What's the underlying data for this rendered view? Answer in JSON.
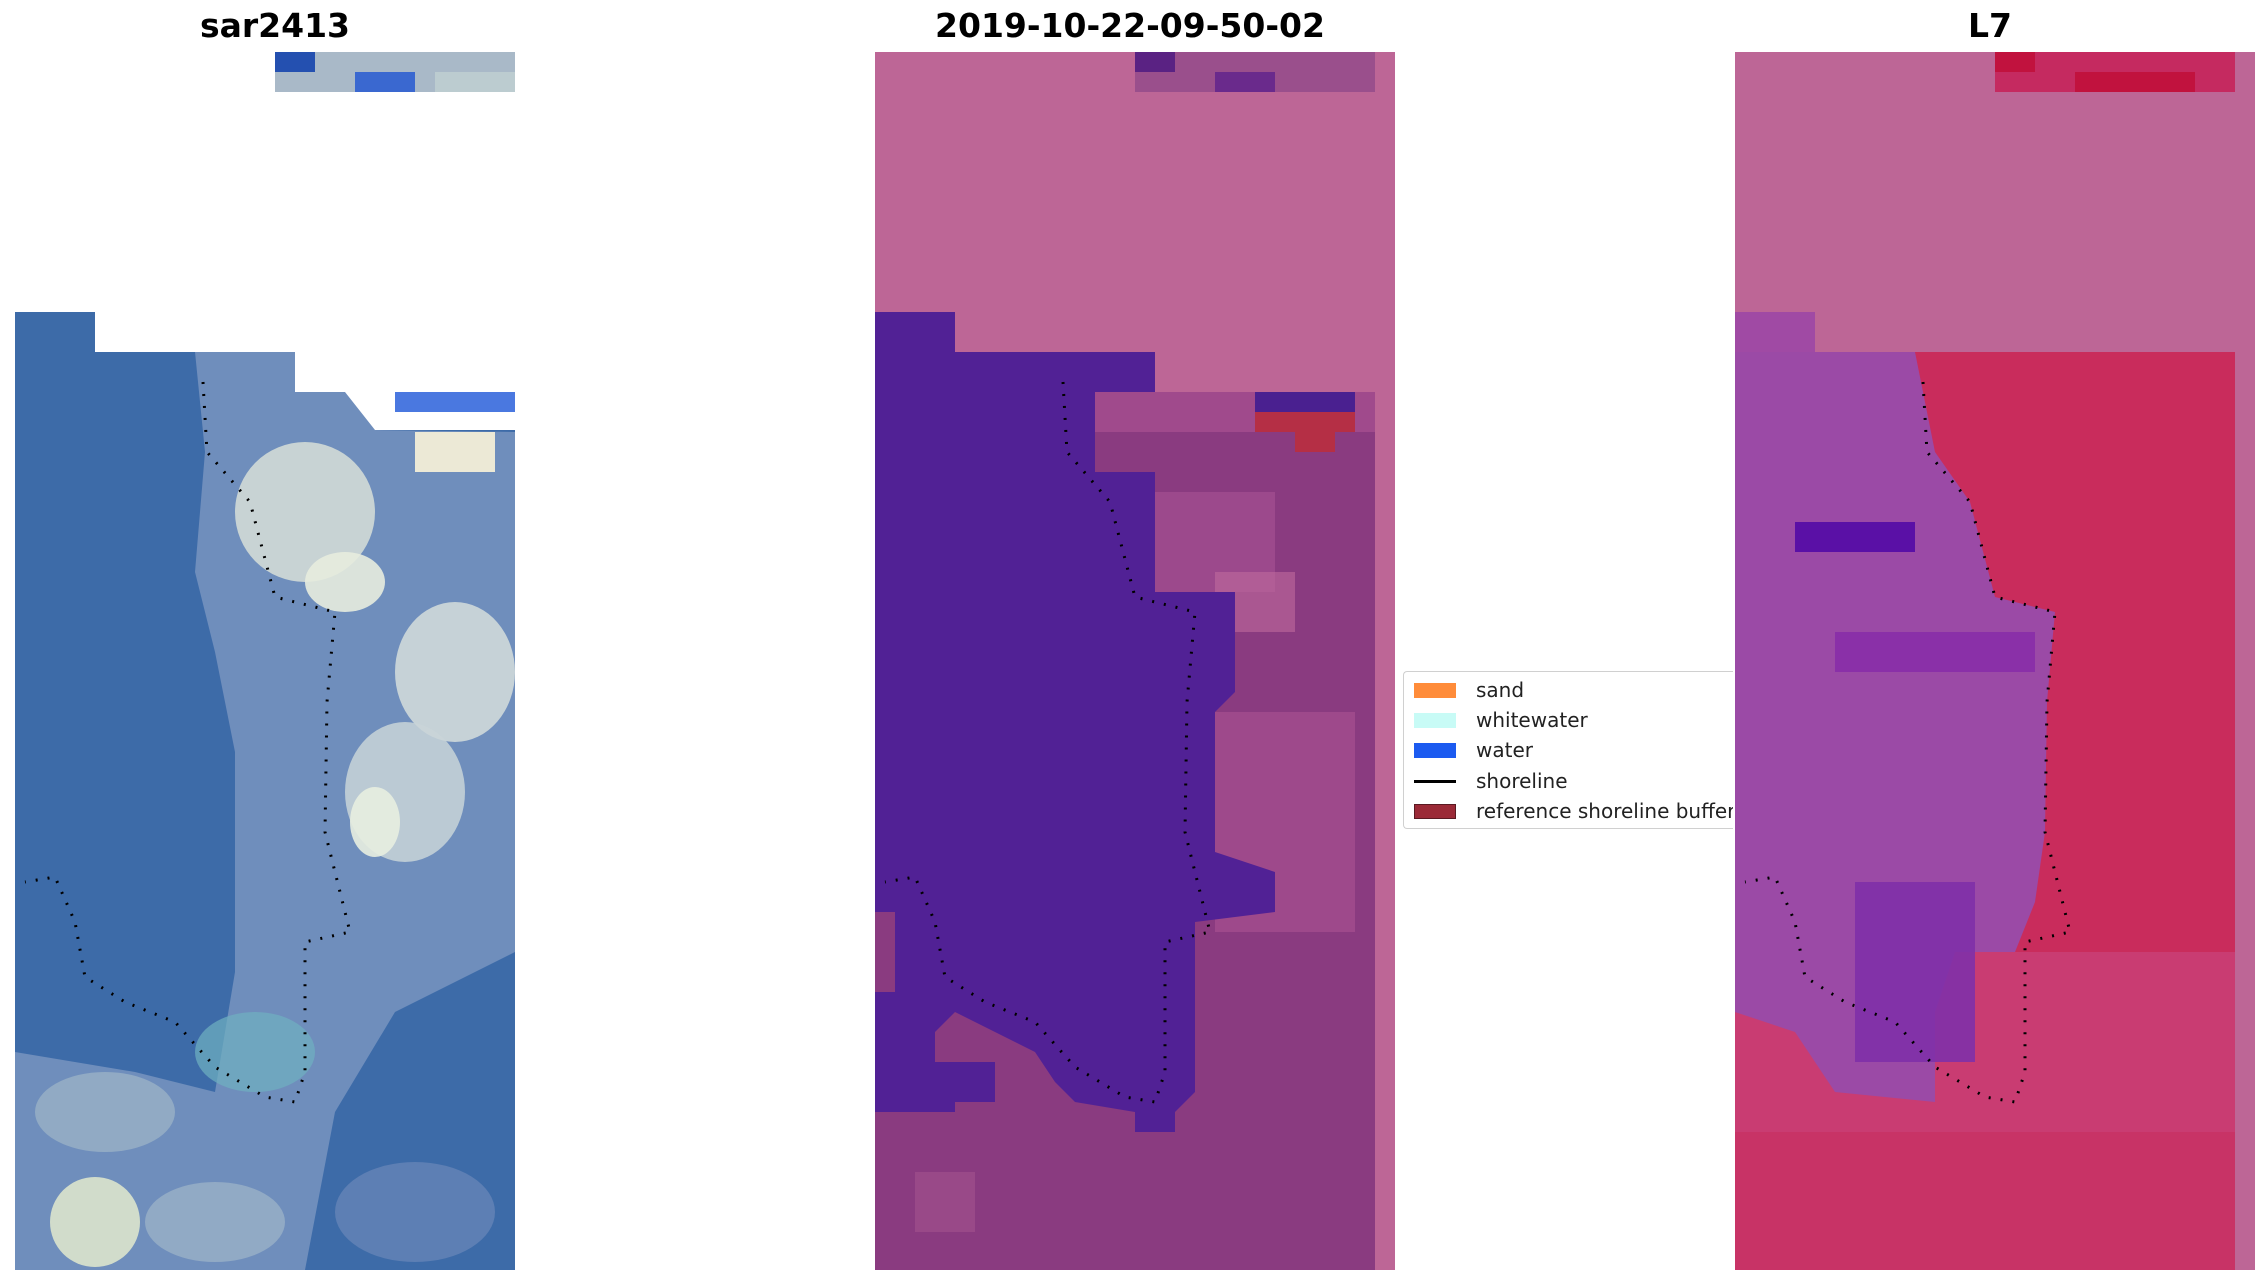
{
  "panels": [
    {
      "title": "sar2413"
    },
    {
      "title": "2019-10-22-09-50-02"
    },
    {
      "title": "L7"
    }
  ],
  "legend": {
    "items": [
      {
        "label": "sand",
        "color": "#ff8c3a",
        "kind": "patch"
      },
      {
        "label": "whitewater",
        "color": "#c8fbf6",
        "kind": "patch"
      },
      {
        "label": "water",
        "color": "#1c5bf0",
        "kind": "patch"
      },
      {
        "label": "shoreline",
        "color": "#000000",
        "kind": "line"
      },
      {
        "label": "reference shoreline buffer",
        "color": "#9b2a37",
        "kind": "patch"
      }
    ]
  },
  "colors": {
    "rgb_water": "#3d6eaa",
    "rgb_foam": "#d6e3df",
    "class_water": "#512195",
    "class_land": "#bd6696",
    "class_mid": "#8a3b80",
    "ndwi_water": "#8e3aa8",
    "ndwi_land": "#c91f58",
    "ndwi_nodata": "#bd6696"
  }
}
